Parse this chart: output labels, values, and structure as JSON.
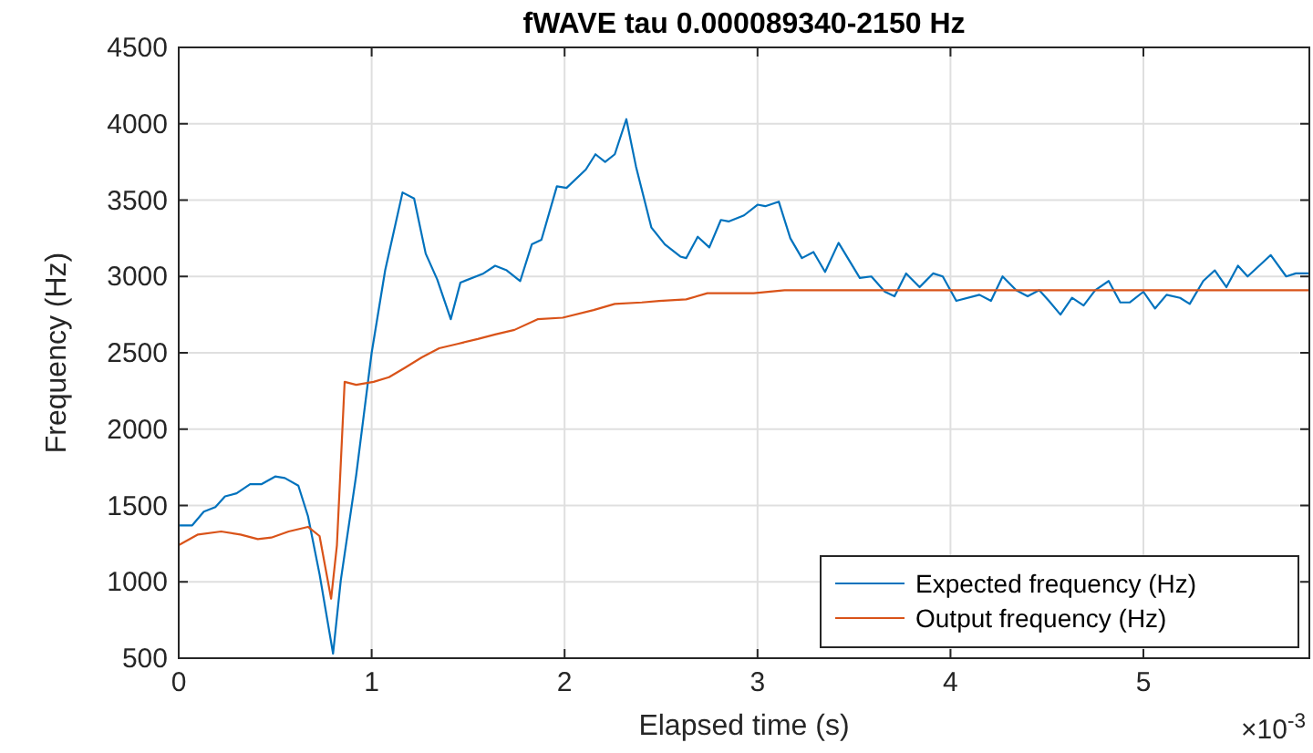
{
  "chart_data": {
    "type": "line",
    "title": "fWAVE tau 0.000089340-2150 Hz",
    "xlabel": "Elapsed time (s)",
    "ylabel": "Frequency (Hz)",
    "annotations": [
      "×10$^{-3}$"
    ],
    "xlim": [
      0,
      5.86
    ],
    "xticks": [
      0,
      1,
      2,
      3,
      4,
      5
    ],
    "ylim": [
      500,
      4500
    ],
    "yticks": [
      500,
      1000,
      1500,
      2000,
      2500,
      3000,
      3500,
      4000,
      4500
    ],
    "grid": true,
    "legend": "bottom right",
    "line_style": "solid",
    "marker": "none",
    "series": [
      {
        "name": "Expected frequency (Hz)",
        "color": "#0072bd",
        "x": [
          0,
          0.07,
          0.13,
          0.19,
          0.24,
          0.3,
          0.37,
          0.43,
          0.5,
          0.55,
          0.62,
          0.67,
          0.73,
          0.8,
          0.84,
          0.92,
          1,
          1.07,
          1.16,
          1.22,
          1.28,
          1.34,
          1.41,
          1.46,
          1.58,
          1.64,
          1.7,
          1.77,
          1.83,
          1.88,
          1.96,
          2.01,
          2.11,
          2.16,
          2.21,
          2.26,
          2.32,
          2.37,
          2.45,
          2.52,
          2.6,
          2.63,
          2.69,
          2.75,
          2.81,
          2.85,
          2.93,
          3,
          3.04,
          3.11,
          3.17,
          3.23,
          3.29,
          3.35,
          3.42,
          3.53,
          3.59,
          3.66,
          3.71,
          3.77,
          3.84,
          3.91,
          3.96,
          4.03,
          4.15,
          4.21,
          4.27,
          4.34,
          4.4,
          4.46,
          4.51,
          4.57,
          4.63,
          4.69,
          4.75,
          4.82,
          4.88,
          4.93,
          5,
          5.06,
          5.12,
          5.19,
          5.24,
          5.31,
          5.37,
          5.43,
          5.49,
          5.54,
          5.66,
          5.74,
          5.79,
          5.86
        ],
        "values": [
          1370,
          1370,
          1460,
          1490,
          1560,
          1580,
          1640,
          1640,
          1690,
          1680,
          1630,
          1430,
          1050,
          530,
          1010,
          1700,
          2500,
          3040,
          3550,
          3510,
          3150,
          2980,
          2720,
          2960,
          3020,
          3070,
          3040,
          2970,
          3210,
          3240,
          3590,
          3580,
          3700,
          3800,
          3750,
          3800,
          4030,
          3720,
          3320,
          3210,
          3130,
          3120,
          3260,
          3190,
          3370,
          3360,
          3400,
          3470,
          3460,
          3490,
          3250,
          3120,
          3160,
          3030,
          3220,
          2990,
          3000,
          2900,
          2870,
          3020,
          2930,
          3020,
          3000,
          2840,
          2880,
          2840,
          3000,
          2910,
          2870,
          2910,
          2840,
          2750,
          2860,
          2810,
          2910,
          2970,
          2830,
          2830,
          2900,
          2790,
          2880,
          2860,
          2820,
          2970,
          3040,
          2930,
          3070,
          3000,
          3140,
          3000,
          3020,
          3020
        ]
      },
      {
        "name": "Output frequency (Hz)",
        "color": "#d95319",
        "x": [
          0,
          0.1,
          0.22,
          0.32,
          0.41,
          0.48,
          0.57,
          0.67,
          0.73,
          0.79,
          0.82,
          0.86,
          0.92,
          1.01,
          1.09,
          1.17,
          1.26,
          1.35,
          1.45,
          1.55,
          1.64,
          1.74,
          1.86,
          1.99,
          2.15,
          2.26,
          2.4,
          2.49,
          2.63,
          2.74,
          2.98,
          3.14,
          5.86
        ],
        "values": [
          1240,
          1310,
          1330,
          1310,
          1280,
          1290,
          1330,
          1360,
          1300,
          890,
          1240,
          2310,
          2290,
          2310,
          2340,
          2400,
          2470,
          2530,
          2560,
          2590,
          2620,
          2650,
          2720,
          2730,
          2780,
          2820,
          2830,
          2840,
          2850,
          2890,
          2890,
          2910,
          2910
        ]
      }
    ]
  }
}
